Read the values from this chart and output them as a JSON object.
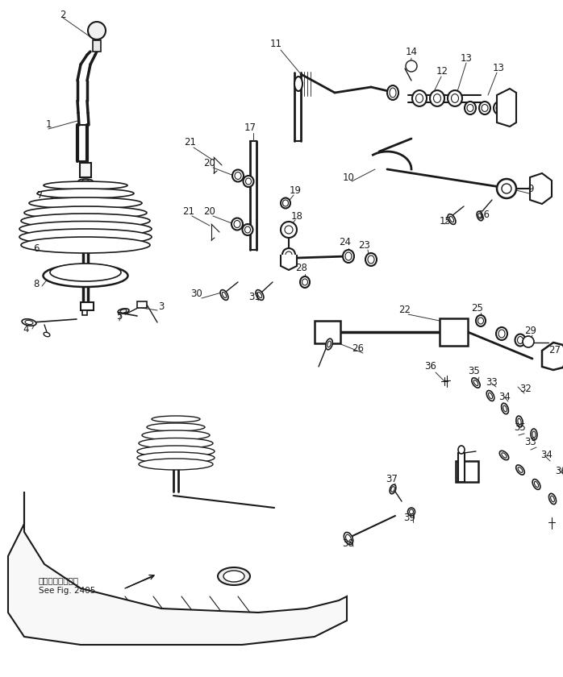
{
  "background_color": "#ffffff",
  "line_color": "#1a1a1a",
  "text_color": "#1a1a1a",
  "fig_width": 6.98,
  "fig_height": 8.4,
  "dpi": 100,
  "footer_line1": "第２４０５回参照",
  "footer_line2": "See Fig. 2405",
  "imgW": 698,
  "imgH": 840
}
